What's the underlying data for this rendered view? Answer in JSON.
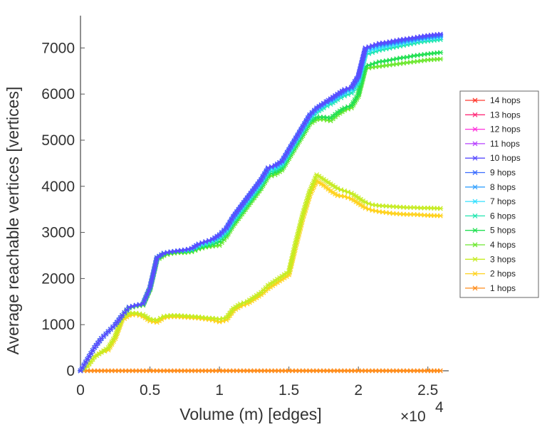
{
  "chart_data": {
    "type": "line",
    "title": "",
    "xlabel": "Volume (m) [edges]",
    "ylabel": "Average reachable vertices [vertices]",
    "x_exponent_label": "×10",
    "x_exponent_power": "4",
    "xlim": [
      0,
      26500
    ],
    "ylim": [
      0,
      7700
    ],
    "x_ticks": [
      0,
      5000,
      10000,
      15000,
      20000,
      25000
    ],
    "x_tick_labels": [
      "0",
      "0.5",
      "1",
      "1.5",
      "2",
      "2.5"
    ],
    "y_ticks": [
      0,
      1000,
      2000,
      3000,
      4000,
      5000,
      6000,
      7000
    ],
    "y_tick_labels": [
      "0",
      "1000",
      "2000",
      "3000",
      "4000",
      "5000",
      "6000",
      "7000"
    ],
    "legend_position": "right-outside",
    "legend": [
      "14 hops",
      "13 hops",
      "12 hops",
      "11 hops",
      "10 hops",
      "9 hops",
      "8 hops",
      "7 hops",
      "6 hops",
      "5 hops",
      "4 hops",
      "3 hops",
      "2 hops",
      "1 hops"
    ],
    "colors": {
      "14 hops": "#ff3b30",
      "13 hops": "#ff2d7a",
      "12 hops": "#ff33dd",
      "11 hops": "#b740ff",
      "10 hops": "#5a4cff",
      "9 hops": "#3a6dff",
      "8 hops": "#36a2ff",
      "7 hops": "#33e0ff",
      "6 hops": "#22e6b0",
      "5 hops": "#22e052",
      "4 hops": "#6ee830",
      "3 hops": "#c6ec22",
      "2 hops": "#ffd21c",
      "1 hops": "#ff8c1a"
    },
    "x": [
      0,
      500,
      1000,
      1500,
      2000,
      2500,
      3000,
      3500,
      4000,
      4500,
      5000,
      5500,
      6000,
      6500,
      7000,
      7500,
      8000,
      8500,
      9000,
      9500,
      10000,
      10500,
      11000,
      11500,
      12000,
      12500,
      13000,
      13500,
      14000,
      14500,
      15000,
      15500,
      16000,
      16500,
      17000,
      17500,
      18000,
      18500,
      19000,
      19500,
      20000,
      20500,
      21000,
      21500,
      22000,
      22500,
      23000,
      23500,
      24000,
      24500,
      25000,
      25900
    ],
    "series": [
      {
        "name": "10 hops",
        "values": [
          0,
          250,
          500,
          700,
          850,
          1000,
          1200,
          1380,
          1420,
          1450,
          1800,
          2450,
          2550,
          2580,
          2600,
          2620,
          2650,
          2750,
          2800,
          2850,
          2950,
          3100,
          3350,
          3550,
          3750,
          3950,
          4150,
          4400,
          4450,
          4550,
          4800,
          5050,
          5300,
          5550,
          5700,
          5800,
          5900,
          6000,
          6100,
          6150,
          6400,
          7000,
          7050,
          7100,
          7120,
          7150,
          7180,
          7200,
          7220,
          7250,
          7270,
          7300
        ]
      },
      {
        "name": "9 hops",
        "values": [
          0,
          250,
          500,
          700,
          850,
          1000,
          1200,
          1380,
          1420,
          1450,
          1800,
          2450,
          2550,
          2580,
          2600,
          2620,
          2650,
          2750,
          2800,
          2850,
          2950,
          3100,
          3350,
          3550,
          3750,
          3950,
          4150,
          4400,
          4450,
          4550,
          4800,
          5050,
          5300,
          5550,
          5700,
          5800,
          5880,
          5990,
          6080,
          6140,
          6380,
          6990,
          7040,
          7080,
          7100,
          7120,
          7150,
          7180,
          7200,
          7220,
          7250,
          7280
        ]
      },
      {
        "name": "8 hops",
        "values": [
          0,
          250,
          500,
          700,
          850,
          1000,
          1200,
          1380,
          1420,
          1450,
          1800,
          2450,
          2550,
          2580,
          2600,
          2620,
          2650,
          2740,
          2790,
          2840,
          2930,
          3080,
          3330,
          3530,
          3730,
          3930,
          4130,
          4380,
          4430,
          4530,
          4780,
          5030,
          5280,
          5530,
          5680,
          5780,
          5860,
          5960,
          6050,
          6120,
          6350,
          6960,
          7010,
          7050,
          7070,
          7100,
          7120,
          7150,
          7170,
          7200,
          7220,
          7250
        ]
      },
      {
        "name": "7 hops",
        "values": [
          0,
          250,
          500,
          700,
          850,
          1000,
          1200,
          1380,
          1420,
          1450,
          1800,
          2450,
          2550,
          2580,
          2600,
          2610,
          2640,
          2720,
          2770,
          2820,
          2900,
          3050,
          3300,
          3500,
          3700,
          3900,
          4100,
          4350,
          4400,
          4500,
          4750,
          5000,
          5250,
          5500,
          5650,
          5750,
          5830,
          5930,
          6020,
          6080,
          6300,
          6900,
          6960,
          7000,
          7030,
          7060,
          7090,
          7120,
          7150,
          7180,
          7200,
          7230
        ]
      },
      {
        "name": "6 hops",
        "values": [
          0,
          250,
          500,
          700,
          850,
          1000,
          1200,
          1380,
          1420,
          1450,
          1800,
          2450,
          2550,
          2580,
          2600,
          2600,
          2620,
          2700,
          2740,
          2780,
          2860,
          3000,
          3250,
          3450,
          3650,
          3850,
          4050,
          4300,
          4350,
          4450,
          4700,
          4950,
          5200,
          5450,
          5600,
          5700,
          5780,
          5880,
          5960,
          6020,
          6240,
          6850,
          6900,
          6950,
          6980,
          7010,
          7040,
          7070,
          7100,
          7130,
          7150,
          7180
        ]
      },
      {
        "name": "5 hops",
        "values": [
          0,
          250,
          500,
          700,
          850,
          1000,
          1200,
          1370,
          1410,
          1440,
          1780,
          2430,
          2530,
          2560,
          2580,
          2580,
          2600,
          2660,
          2700,
          2740,
          2800,
          2960,
          3200,
          3400,
          3600,
          3800,
          4000,
          4250,
          4300,
          4400,
          4650,
          4900,
          5150,
          5400,
          5500,
          5500,
          5480,
          5600,
          5700,
          5750,
          6000,
          6600,
          6650,
          6700,
          6720,
          6750,
          6780,
          6800,
          6830,
          6850,
          6870,
          6900
        ]
      },
      {
        "name": "4 hops",
        "values": [
          0,
          250,
          500,
          700,
          850,
          1000,
          1200,
          1360,
          1400,
          1420,
          1760,
          2400,
          2500,
          2540,
          2560,
          2560,
          2580,
          2640,
          2680,
          2700,
          2720,
          2900,
          3150,
          3350,
          3550,
          3750,
          3950,
          4200,
          4250,
          4350,
          4600,
          4850,
          5100,
          5350,
          5450,
          5450,
          5420,
          5550,
          5650,
          5700,
          5950,
          6550,
          6580,
          6600,
          6620,
          6640,
          6660,
          6680,
          6700,
          6720,
          6740,
          6760
        ]
      },
      {
        "name": "3 hops",
        "values": [
          0,
          100,
          300,
          400,
          500,
          750,
          1150,
          1250,
          1250,
          1220,
          1120,
          1100,
          1180,
          1200,
          1200,
          1190,
          1180,
          1170,
          1150,
          1140,
          1120,
          1150,
          1350,
          1450,
          1500,
          1600,
          1700,
          1850,
          1950,
          2050,
          2150,
          2800,
          3400,
          3900,
          4250,
          4150,
          4050,
          3950,
          3900,
          3850,
          3750,
          3650,
          3600,
          3580,
          3570,
          3560,
          3550,
          3540,
          3540,
          3530,
          3530,
          3520
        ]
      },
      {
        "name": "2 hops",
        "values": [
          0,
          100,
          300,
          400,
          450,
          700,
          1100,
          1200,
          1220,
          1180,
          1080,
          1050,
          1150,
          1170,
          1170,
          1160,
          1150,
          1140,
          1120,
          1100,
          1060,
          1100,
          1300,
          1400,
          1450,
          1550,
          1650,
          1780,
          1880,
          1980,
          2080,
          2700,
          3300,
          3800,
          4120,
          4020,
          3900,
          3800,
          3780,
          3730,
          3630,
          3530,
          3480,
          3450,
          3430,
          3410,
          3400,
          3390,
          3390,
          3380,
          3370,
          3360
        ]
      },
      {
        "name": "1 hops",
        "values": [
          0,
          0,
          0,
          0,
          0,
          0,
          0,
          0,
          0,
          0,
          0,
          0,
          0,
          0,
          0,
          0,
          0,
          0,
          0,
          0,
          0,
          0,
          0,
          0,
          0,
          0,
          0,
          0,
          0,
          0,
          0,
          0,
          0,
          0,
          0,
          0,
          0,
          0,
          0,
          0,
          0,
          0,
          0,
          0,
          0,
          0,
          0,
          0,
          0,
          0,
          0,
          0
        ]
      }
    ]
  }
}
